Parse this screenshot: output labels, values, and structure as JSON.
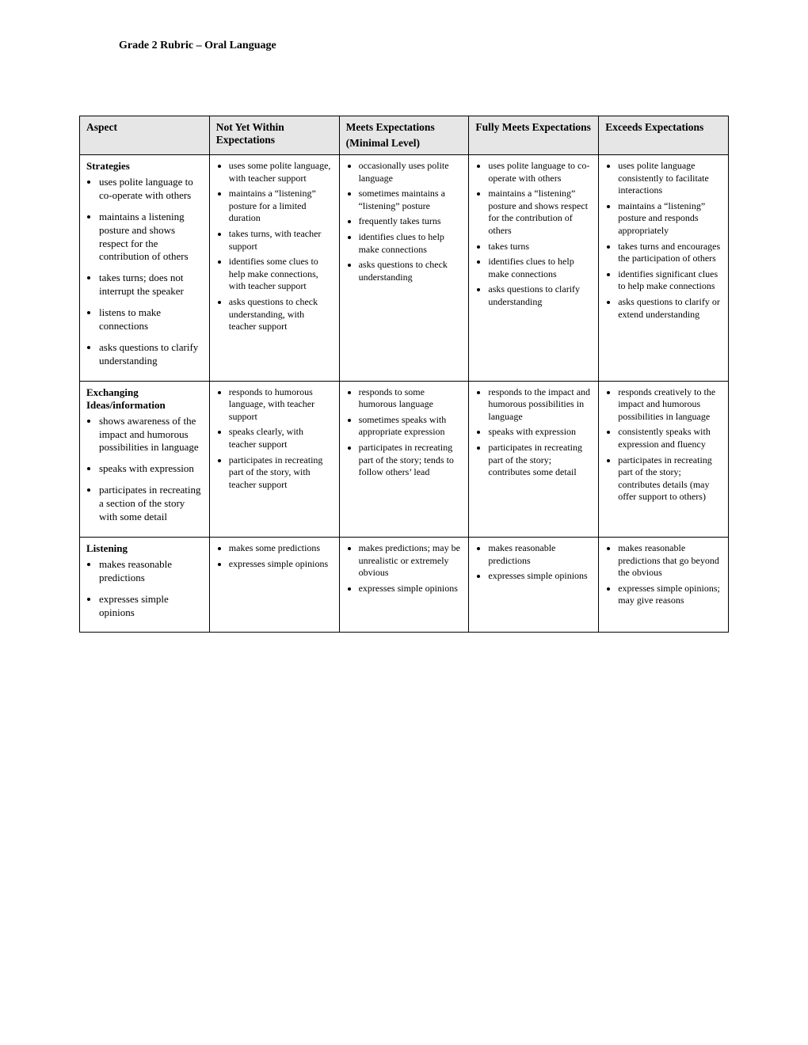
{
  "title": "Grade 2 Rubric – Oral Language",
  "table": {
    "headers": {
      "aspect": "Aspect",
      "not_yet": "Not Yet Within Expectations",
      "meets_label": "Meets Expectations",
      "meets_sub": "(Minimal Level)",
      "fully_meets": "Fully Meets Expectations",
      "exceeds": "Exceeds Expectations"
    },
    "rows": [
      {
        "aspect_title": "Strategies",
        "aspect_items": [
          "uses polite language to co-operate with others",
          "maintains a listening posture and shows respect for the contribution of others",
          "takes turns; does not interrupt the speaker",
          "listens to make connections",
          "asks questions to clarify understanding"
        ],
        "not_yet": [
          "uses some polite language, with teacher support",
          "maintains a “listening” posture for a limited duration",
          "takes turns, with teacher support",
          "identifies some clues to help make connections, with teacher support",
          "asks questions to check understanding, with teacher support"
        ],
        "meets": [
          "occasionally uses polite language",
          "sometimes maintains a “listening” posture",
          "frequently takes turns",
          "identifies clues to help make connections",
          "asks questions to check understanding"
        ],
        "fully_meets": [
          "uses polite language to co-operate with others",
          "maintains a “listening” posture and shows respect for the contribution of others",
          "takes turns",
          "identifies clues to help make connections",
          "asks questions to clarify understanding"
        ],
        "exceeds": [
          "uses polite language consistently to facilitate interactions",
          "maintains a “listening” posture and responds appropriately",
          "takes turns and encourages the participation of others",
          "identifies significant clues to help make connections",
          "asks questions to clarify or extend understanding"
        ]
      },
      {
        "aspect_title": "Exchanging Ideas/information",
        "aspect_items": [
          "shows awareness of the impact and humorous possibilities in language",
          "speaks with expression",
          "participates in recreating a section of the story with some detail"
        ],
        "not_yet": [
          "responds to humorous language, with teacher support",
          "speaks clearly, with teacher support",
          "participates in recreating part of the story, with teacher support"
        ],
        "meets": [
          "responds to some humorous language",
          "sometimes speaks with appropriate expression",
          "participates in recreating part of the story; tends to follow others’ lead"
        ],
        "fully_meets": [
          "responds to the impact and humorous possibilities in language",
          "speaks with expression",
          "participates in recreating part of the story; contributes some detail"
        ],
        "exceeds": [
          "responds creatively to the impact and humorous possibilities in language",
          "consistently speaks with expression and fluency",
          "participates in recreating part of the story; contributes details (may offer support to others)"
        ]
      },
      {
        "aspect_title": "Listening",
        "aspect_items": [
          "makes reasonable predictions",
          "expresses simple opinions"
        ],
        "not_yet": [
          "makes some predictions",
          "expresses simple opinions"
        ],
        "meets": [
          "makes predictions; may be unrealistic or extremely obvious",
          "expresses simple opinions"
        ],
        "fully_meets": [
          "makes reasonable predictions",
          "expresses simple opinions"
        ],
        "exceeds": [
          "makes reasonable predictions that go beyond the obvious",
          "expresses simple opinions; may give reasons"
        ]
      }
    ]
  },
  "styling": {
    "header_bg": "#e6e6e6",
    "border_color": "#000000",
    "body_bg": "#ffffff",
    "text_color": "#000000"
  }
}
